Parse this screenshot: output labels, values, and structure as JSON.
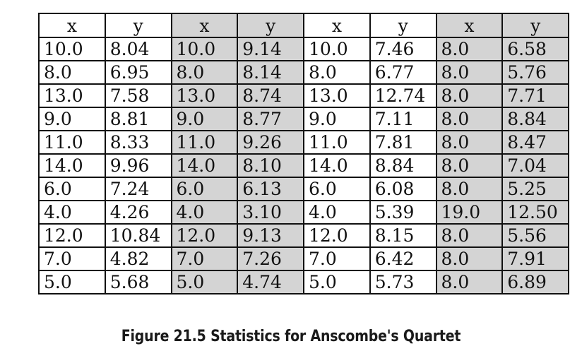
{
  "table": {
    "columns": [
      "x",
      "y",
      "x",
      "y",
      "x",
      "y",
      "x",
      "y"
    ],
    "rows": [
      [
        "10.0",
        "8.04",
        "10.0",
        "9.14",
        "10.0",
        "7.46",
        "8.0",
        "6.58"
      ],
      [
        "8.0",
        "6.95",
        "8.0",
        "8.14",
        "8.0",
        "6.77",
        "8.0",
        "5.76"
      ],
      [
        "13.0",
        "7.58",
        "13.0",
        "8.74",
        "13.0",
        "12.74",
        "8.0",
        "7.71"
      ],
      [
        "9.0",
        "8.81",
        "9.0",
        "8.77",
        "9.0",
        "7.11",
        "8.0",
        "8.84"
      ],
      [
        "11.0",
        "8.33",
        "11.0",
        "9.26",
        "11.0",
        "7.81",
        "8.0",
        "8.47"
      ],
      [
        "14.0",
        "9.96",
        "14.0",
        "8.10",
        "14.0",
        "8.84",
        "8.0",
        "7.04"
      ],
      [
        "6.0",
        "7.24",
        "6.0",
        "6.13",
        "6.0",
        "6.08",
        "8.0",
        "5.25"
      ],
      [
        "4.0",
        "4.26",
        "4.0",
        "3.10",
        "4.0",
        "5.39",
        "19.0",
        "12.50"
      ],
      [
        "12.0",
        "10.84",
        "12.0",
        "9.13",
        "12.0",
        "8.15",
        "8.0",
        "5.56"
      ],
      [
        "7.0",
        "4.82",
        "7.0",
        "7.26",
        "7.0",
        "6.42",
        "8.0",
        "7.91"
      ],
      [
        "5.0",
        "5.68",
        "5.0",
        "4.74",
        "5.0",
        "5.73",
        "8.0",
        "6.89"
      ]
    ],
    "shade_color": "#d4d4d4"
  },
  "caption": "Figure 21.5 Statistics for Anscombe's Quartet"
}
